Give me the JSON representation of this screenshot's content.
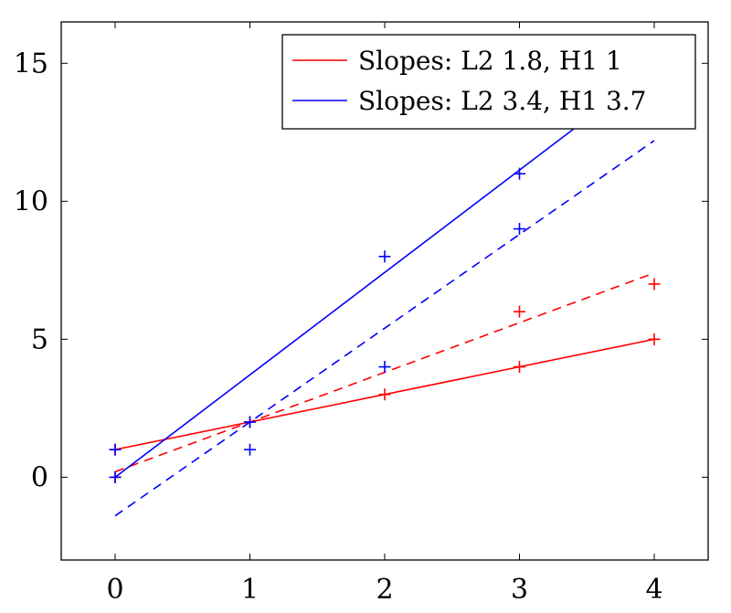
{
  "chart_data": {
    "type": "scatter",
    "title": "",
    "xlabel": "",
    "ylabel": "",
    "xlim": [
      -0.4,
      4.4
    ],
    "ylim": [
      -3,
      16.5
    ],
    "xticks": [
      0,
      1,
      2,
      3,
      4
    ],
    "yticks": [
      0,
      5,
      10,
      15
    ],
    "legend_position": "top-right",
    "grid": false,
    "series": [
      {
        "name": "Slopes: L2 1.8, H1 1",
        "color": "#ff0000",
        "points": [
          [
            0,
            0
          ],
          [
            0,
            1
          ],
          [
            1,
            2
          ],
          [
            2,
            3
          ],
          [
            3,
            4
          ],
          [
            3,
            6
          ],
          [
            4,
            5
          ],
          [
            4,
            7
          ]
        ],
        "fit_solid": {
          "x": [
            0,
            4
          ],
          "y": [
            1,
            5
          ]
        },
        "fit_dashed": {
          "x": [
            0,
            4
          ],
          "y": [
            0.2,
            7.4
          ]
        }
      },
      {
        "name": "Slopes: L2 3.4, H1 3.7",
        "color": "#0000ff",
        "points": [
          [
            0,
            0
          ],
          [
            0,
            1
          ],
          [
            1,
            1
          ],
          [
            1,
            2
          ],
          [
            2,
            4
          ],
          [
            2,
            8
          ],
          [
            3,
            9
          ],
          [
            3,
            11
          ]
        ],
        "fit_solid": {
          "x": [
            0,
            3.45
          ],
          "y": [
            0,
            12.8
          ]
        },
        "fit_dashed": {
          "x": [
            0,
            4
          ],
          "y": [
            -1.4,
            12.2
          ]
        }
      }
    ]
  }
}
